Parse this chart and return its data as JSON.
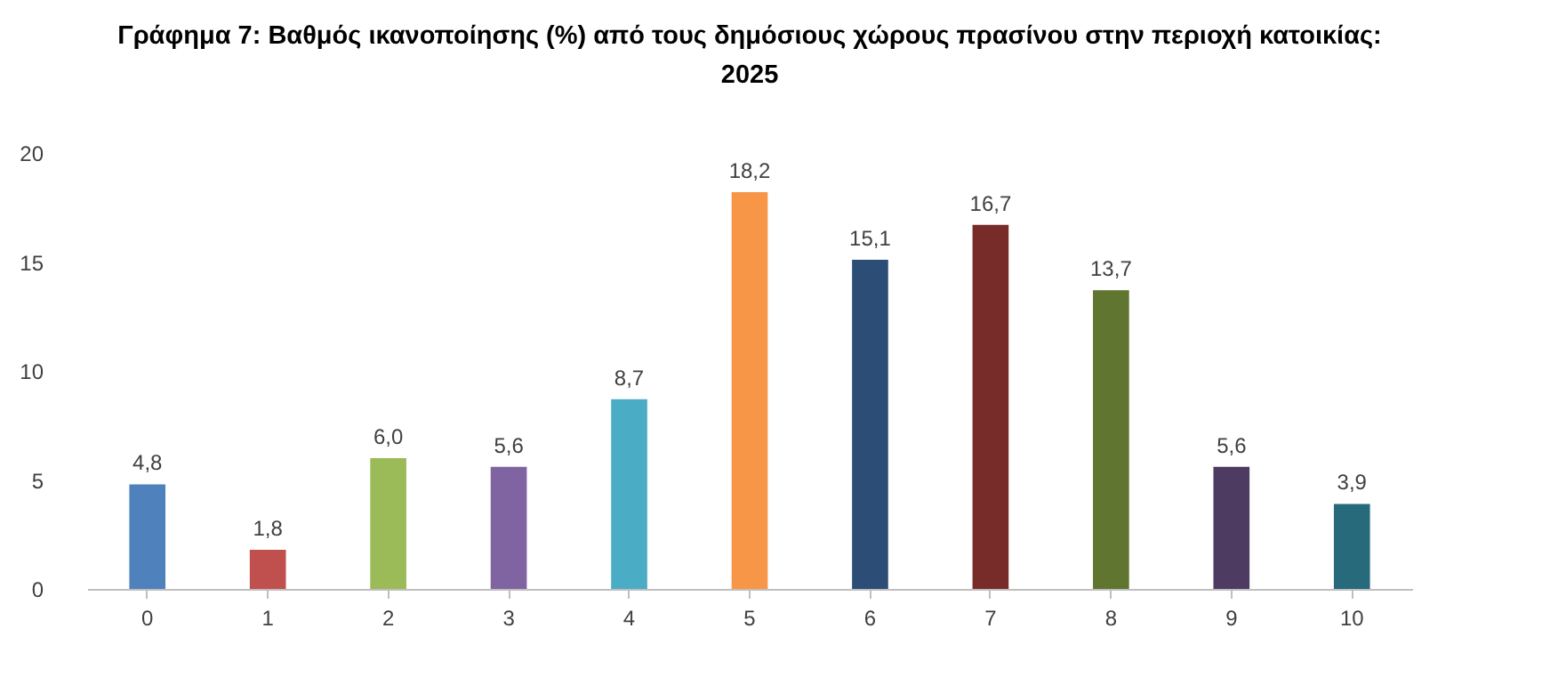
{
  "chart_data": {
    "type": "bar",
    "title": "Γράφημα 7: Βαθμός ικανοποίησης (%) από τους δημόσιους χώρους πρασίνου στην περιοχή κατοικίας: 2025",
    "categories": [
      "0",
      "1",
      "2",
      "3",
      "4",
      "5",
      "6",
      "7",
      "8",
      "9",
      "10"
    ],
    "values": [
      4.8,
      1.8,
      6.0,
      5.6,
      8.7,
      18.2,
      15.1,
      16.7,
      13.7,
      5.6,
      3.9
    ],
    "colors": [
      "#4f81bd",
      "#c0504d",
      "#9bbb59",
      "#8064a2",
      "#4bacc6",
      "#f79646",
      "#2c4d75",
      "#772c2a",
      "#5f7530",
      "#4d3b62",
      "#276a7c"
    ],
    "ylim": [
      0,
      20
    ],
    "yticks": [
      0,
      5,
      10,
      15,
      20
    ],
    "value_labels": [
      "4,8",
      "1,8",
      "6,0",
      "5,6",
      "8,7",
      "18,2",
      "15,1",
      "16,7",
      "13,7",
      "5,6",
      "3,9"
    ],
    "grid": false,
    "legend": false
  }
}
